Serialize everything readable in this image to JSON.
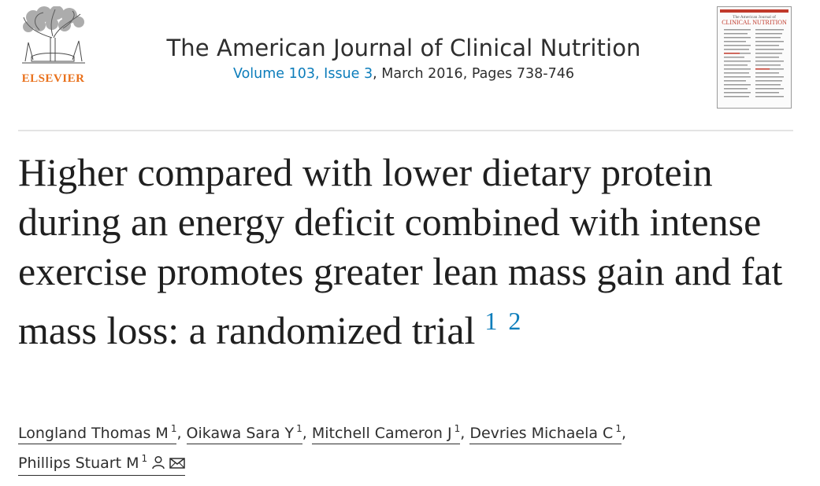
{
  "header": {
    "publisher": {
      "name": "ELSEVIER",
      "icon": "elsevier-tree-logo-icon"
    },
    "journal": {
      "title": "The American Journal of Clinical Nutrition",
      "issue_link": "Volume 103, Issue 3",
      "date_pages": ", March 2016, Pages 738-746"
    },
    "cover": {
      "small_title": "The American Journal of",
      "big_title": "CLINICAL NUTRITION",
      "icon": "journal-cover-thumbnail"
    }
  },
  "article": {
    "title": "Higher compared with lower dietary protein during an energy deficit combined with intense exercise promotes greater lean mass gain and fat mass loss: a randomized trial",
    "footnotes": [
      "1",
      "2"
    ]
  },
  "authors": [
    {
      "name": "Longland Thomas M",
      "aff": "1",
      "sep": ", "
    },
    {
      "name": "Oikawa Sara Y",
      "aff": "1",
      "sep": ", "
    },
    {
      "name": "Mitchell Cameron J",
      "aff": "1",
      "sep": ", "
    },
    {
      "name": "Devries Michaela C",
      "aff": "1",
      "sep": ","
    },
    {
      "name": "Phillips Stuart M",
      "aff": "1",
      "sep": "",
      "icons": [
        "person-icon",
        "envelope-icon"
      ]
    }
  ],
  "colors": {
    "link": "#0c7dbb",
    "publisher": "#e9711c",
    "text": "#1f1f1f",
    "divider": "#e4e4e4"
  }
}
